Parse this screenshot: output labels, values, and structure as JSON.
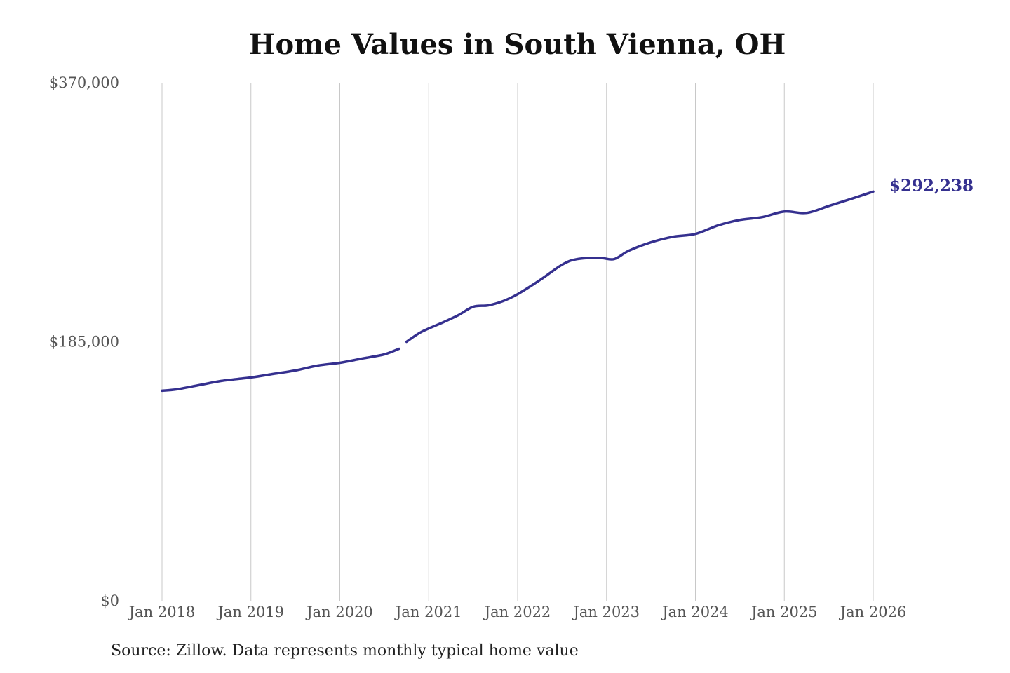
{
  "chart_data": {
    "type": "line",
    "title": "Home Values in South Vienna, OH",
    "xlabel": "",
    "ylabel": "",
    "x_ticks": [
      "Jan 2018",
      "Jan 2019",
      "Jan 2020",
      "Jan 2021",
      "Jan 2022",
      "Jan 2023",
      "Jan 2024",
      "Jan 2025",
      "Jan 2026"
    ],
    "y_ticks": [
      "$0",
      "$185,000",
      "$370,000"
    ],
    "ylim": [
      0,
      370000
    ],
    "xlim": [
      "2018-01",
      "2026-01"
    ],
    "grid": "vertical",
    "line_color": "#35308f",
    "end_label": "$292,238",
    "series": [
      {
        "segments": [
          [
            [
              "2018-01",
              150000
            ],
            [
              "2018-03",
              151000
            ],
            [
              "2018-06",
              154000
            ],
            [
              "2018-09",
              157000
            ],
            [
              "2019-01",
              159500
            ],
            [
              "2019-04",
              162000
            ],
            [
              "2019-07",
              164500
            ],
            [
              "2019-10",
              168000
            ],
            [
              "2020-01",
              170000
            ],
            [
              "2020-04",
              173000
            ],
            [
              "2020-07",
              176000
            ],
            [
              "2020-09",
              180000
            ]
          ],
          [
            [
              "2020-10",
              185000
            ],
            [
              "2020-12",
              192000
            ],
            [
              "2021-03",
              199000
            ],
            [
              "2021-05",
              204000
            ],
            [
              "2021-07",
              210000
            ],
            [
              "2021-09",
              211000
            ],
            [
              "2021-11",
              214000
            ],
            [
              "2022-01",
              219000
            ],
            [
              "2022-04",
              229000
            ],
            [
              "2022-07",
              240000
            ],
            [
              "2022-09",
              244000
            ],
            [
              "2022-12",
              245000
            ],
            [
              "2023-02",
              244000
            ],
            [
              "2023-04",
              250000
            ],
            [
              "2023-07",
              256000
            ],
            [
              "2023-10",
              260000
            ],
            [
              "2024-01",
              262000
            ],
            [
              "2024-04",
              268000
            ],
            [
              "2024-07",
              272000
            ],
            [
              "2024-10",
              274000
            ],
            [
              "2025-01",
              278000
            ],
            [
              "2025-04",
              277000
            ],
            [
              "2025-07",
              282000
            ],
            [
              "2025-10",
              287000
            ],
            [
              "2026-01",
              292238
            ]
          ]
        ]
      }
    ]
  },
  "source": "Source: Zillow. Data represents monthly typical home value"
}
